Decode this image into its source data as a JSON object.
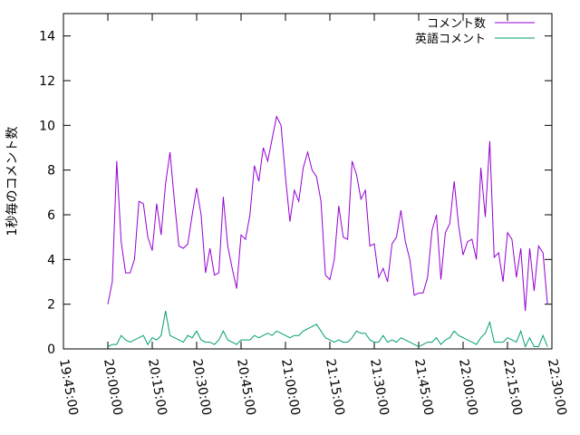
{
  "chart_data": {
    "type": "line",
    "title": "",
    "xlabel": "",
    "ylabel": "1秒毎のコメント数",
    "ylim": [
      0,
      15
    ],
    "yticks": [
      0,
      2,
      4,
      6,
      8,
      10,
      12,
      14
    ],
    "xlim": [
      "19:45:00",
      "22:30:00"
    ],
    "xticks": [
      "19:45:00",
      "20:00:00",
      "20:15:00",
      "20:30:00",
      "20:45:00",
      "21:00:00",
      "21:15:00",
      "21:30:00",
      "21:45:00",
      "22:00:00",
      "22:15:00",
      "22:30:00"
    ],
    "grid": false,
    "legend_position": "top-right",
    "x": [
      "20:00:00",
      "20:01:30",
      "20:03:00",
      "20:04:30",
      "20:06:00",
      "20:07:30",
      "20:09:00",
      "20:10:30",
      "20:12:00",
      "20:13:30",
      "20:15:00",
      "20:16:30",
      "20:18:00",
      "20:19:30",
      "20:21:00",
      "20:22:30",
      "20:24:00",
      "20:25:30",
      "20:27:00",
      "20:28:30",
      "20:30:00",
      "20:31:30",
      "20:33:00",
      "20:34:30",
      "20:36:00",
      "20:37:30",
      "20:39:00",
      "20:40:30",
      "20:42:00",
      "20:43:30",
      "20:45:00",
      "20:46:30",
      "20:48:00",
      "20:49:30",
      "20:51:00",
      "20:52:30",
      "20:54:00",
      "20:55:30",
      "20:57:00",
      "20:58:30",
      "21:00:00",
      "21:01:30",
      "21:03:00",
      "21:04:30",
      "21:06:00",
      "21:07:30",
      "21:09:00",
      "21:10:30",
      "21:12:00",
      "21:13:30",
      "21:15:00",
      "21:16:30",
      "21:18:00",
      "21:19:30",
      "21:21:00",
      "21:22:30",
      "21:24:00",
      "21:25:30",
      "21:27:00",
      "21:28:30",
      "21:30:00",
      "21:31:30",
      "21:33:00",
      "21:34:30",
      "21:36:00",
      "21:37:30",
      "21:39:00",
      "21:40:30",
      "21:42:00",
      "21:43:30",
      "21:45:00",
      "21:46:30",
      "21:48:00",
      "21:49:30",
      "21:51:00",
      "21:52:30",
      "21:54:00",
      "21:55:30",
      "21:57:00",
      "21:58:30",
      "22:00:00",
      "22:01:30",
      "22:03:00",
      "22:04:30",
      "22:06:00",
      "22:07:30",
      "22:09:00",
      "22:10:30",
      "22:12:00",
      "22:13:30",
      "22:15:00",
      "22:16:30",
      "22:18:00",
      "22:19:30",
      "22:21:00",
      "22:22:30",
      "22:24:00",
      "22:25:30",
      "22:27:00",
      "22:28:30"
    ],
    "series": [
      {
        "name": "コメント数",
        "color": "#9400d3",
        "values": [
          2.0,
          3.0,
          8.4,
          4.8,
          3.4,
          3.4,
          4.0,
          6.6,
          6.5,
          5.0,
          4.4,
          6.5,
          5.1,
          7.4,
          8.8,
          6.6,
          4.6,
          4.5,
          4.7,
          6.0,
          7.2,
          6.0,
          3.4,
          4.5,
          3.3,
          3.4,
          6.8,
          4.6,
          3.6,
          2.7,
          5.1,
          4.9,
          6.0,
          8.2,
          7.5,
          9.0,
          8.4,
          9.4,
          10.4,
          10.0,
          7.7,
          5.7,
          7.1,
          6.6,
          8.1,
          8.8,
          8.0,
          7.7,
          6.6,
          3.3,
          3.1,
          4.0,
          6.4,
          5.0,
          4.9,
          8.4,
          7.8,
          6.7,
          7.1,
          4.6,
          4.7,
          3.2,
          3.6,
          3.0,
          4.7,
          5.0,
          6.2,
          4.8,
          4.0,
          2.4,
          2.5,
          2.5,
          3.2,
          5.3,
          6.0,
          3.1,
          5.2,
          5.6,
          7.5,
          5.5,
          4.2,
          4.8,
          4.9,
          4.0,
          8.1,
          5.9,
          9.3,
          4.1,
          4.3,
          3.0,
          5.2,
          4.9,
          3.2,
          4.5,
          1.7,
          4.5,
          2.6,
          4.6,
          4.3,
          2.0
        ],
        "label": "コメント数"
      },
      {
        "name": "英語コメント",
        "color": "#009e73",
        "values": [
          0.1,
          0.2,
          0.2,
          0.6,
          0.4,
          0.3,
          0.4,
          0.5,
          0.6,
          0.2,
          0.5,
          0.4,
          0.6,
          1.7,
          0.6,
          0.5,
          0.4,
          0.3,
          0.6,
          0.5,
          0.8,
          0.4,
          0.3,
          0.3,
          0.2,
          0.4,
          0.8,
          0.4,
          0.3,
          0.2,
          0.4,
          0.4,
          0.4,
          0.6,
          0.5,
          0.6,
          0.7,
          0.6,
          0.8,
          0.7,
          0.6,
          0.5,
          0.6,
          0.6,
          0.8,
          0.9,
          1.0,
          1.1,
          0.8,
          0.5,
          0.4,
          0.3,
          0.4,
          0.3,
          0.3,
          0.5,
          0.8,
          0.7,
          0.7,
          0.4,
          0.3,
          0.3,
          0.6,
          0.3,
          0.4,
          0.3,
          0.5,
          0.4,
          0.3,
          0.2,
          0.1,
          0.2,
          0.3,
          0.3,
          0.5,
          0.2,
          0.4,
          0.5,
          0.8,
          0.6,
          0.5,
          0.4,
          0.3,
          0.2,
          0.5,
          0.7,
          1.2,
          0.3,
          0.3,
          0.3,
          0.5,
          0.4,
          0.3,
          0.8,
          0.1,
          0.5,
          0.1,
          0.1,
          0.6,
          0.1
        ],
        "label": "英語コメント"
      }
    ]
  }
}
